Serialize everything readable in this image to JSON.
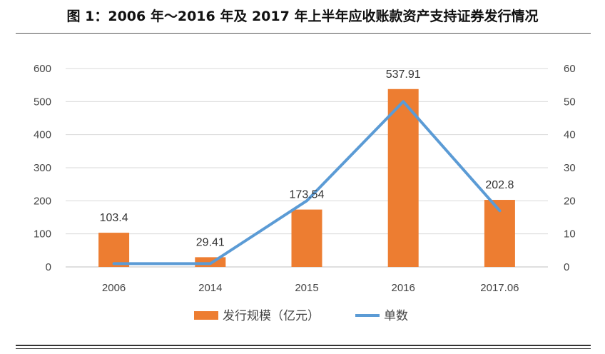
{
  "title": "图 1：2006 年～2016 年及 2017 年上半年应收账款资产支持证券发行情况",
  "chart_data": {
    "type": "bar",
    "categories": [
      "2006",
      "2014",
      "2015",
      "2016",
      "2017.06"
    ],
    "series": [
      {
        "name": "发行规模（亿元）",
        "type": "bar",
        "axis": "left",
        "color": "#ED7D31",
        "values": [
          103.4,
          29.41,
          173.54,
          537.91,
          202.8
        ],
        "labels": [
          "103.4",
          "29.41",
          "173.54",
          "537.91",
          "202.8"
        ]
      },
      {
        "name": "单数",
        "type": "line",
        "axis": "right",
        "color": "#5B9BD5",
        "values": [
          1,
          1,
          20,
          50,
          17
        ]
      }
    ],
    "ylim_left": [
      0,
      600
    ],
    "yticks_left": [
      "0",
      "100",
      "200",
      "300",
      "400",
      "500",
      "600"
    ],
    "ylim_right": [
      0,
      60
    ],
    "yticks_right": [
      "0",
      "10",
      "20",
      "30",
      "40",
      "50",
      "60"
    ],
    "grid": true,
    "legend_position": "bottom"
  }
}
